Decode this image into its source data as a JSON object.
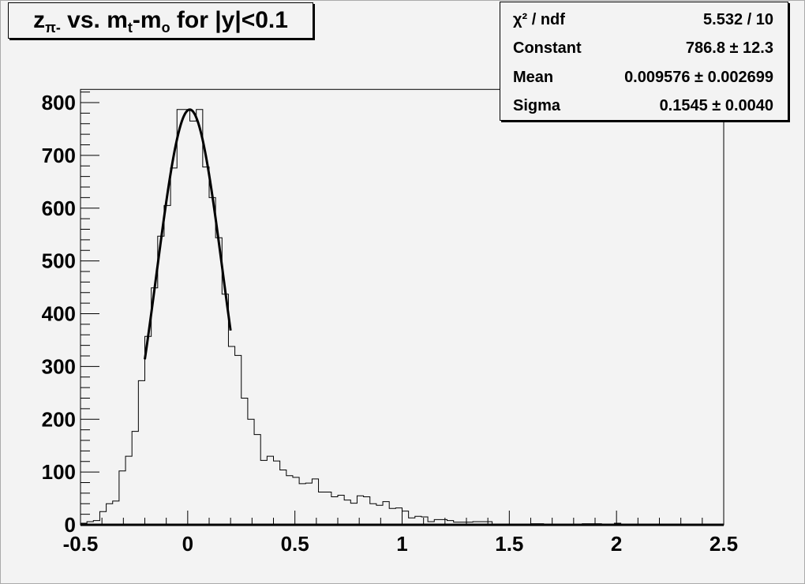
{
  "title": {
    "parts": [
      "z",
      "π-",
      " vs. m",
      "t",
      "-m",
      "o",
      " for |y|<0.1"
    ]
  },
  "stats": {
    "rows": [
      {
        "label": "χ² / ndf",
        "value": "5.532 / 10"
      },
      {
        "label": "Constant",
        "value": "786.8 ± 12.3"
      },
      {
        "label": "Mean",
        "value": "0.009576 ± 0.002699"
      },
      {
        "label": "Sigma",
        "value": "0.1545 ± 0.0040"
      }
    ]
  },
  "chart_data": {
    "type": "histogram",
    "title": "zπ- vs. mt-mo for |y|<0.1",
    "xlim": [
      -0.5,
      2.5
    ],
    "ylim": [
      0,
      825
    ],
    "bin_width": 0.03,
    "xticks": [
      "-0.5",
      "0",
      "0.5",
      "1",
      "1.5",
      "2",
      "2.5"
    ],
    "yticks": [
      "0",
      "100",
      "200",
      "300",
      "400",
      "500",
      "600",
      "700",
      "800"
    ],
    "values": [
      3,
      6,
      8,
      25,
      40,
      45,
      102,
      130,
      177,
      273,
      357,
      449,
      547,
      605,
      676,
      787,
      787,
      765,
      787,
      678,
      620,
      544,
      437,
      338,
      321,
      240,
      200,
      171,
      122,
      130,
      121,
      104,
      93,
      90,
      78,
      79,
      87,
      62,
      62,
      53,
      56,
      47,
      41,
      55,
      53,
      40,
      37,
      44,
      31,
      32,
      26,
      13,
      16,
      15,
      6,
      10,
      10,
      8,
      5,
      5,
      5,
      6,
      6,
      6,
      0,
      0,
      0,
      0,
      0,
      0,
      2,
      2,
      0,
      0,
      0,
      0,
      0,
      0,
      2,
      2,
      2,
      0,
      0,
      3,
      0,
      0,
      0,
      0,
      0,
      0,
      0,
      0,
      0,
      0,
      0,
      0,
      0,
      0,
      0,
      0
    ],
    "fit": {
      "function": "gaus",
      "constant": 786.8,
      "mean": 0.009576,
      "sigma": 0.1545,
      "range": [
        -0.2,
        0.2
      ]
    },
    "grid": false,
    "colors": {
      "histogram": "#000000",
      "fit": "#000000",
      "background": "#f3f3f3"
    }
  }
}
